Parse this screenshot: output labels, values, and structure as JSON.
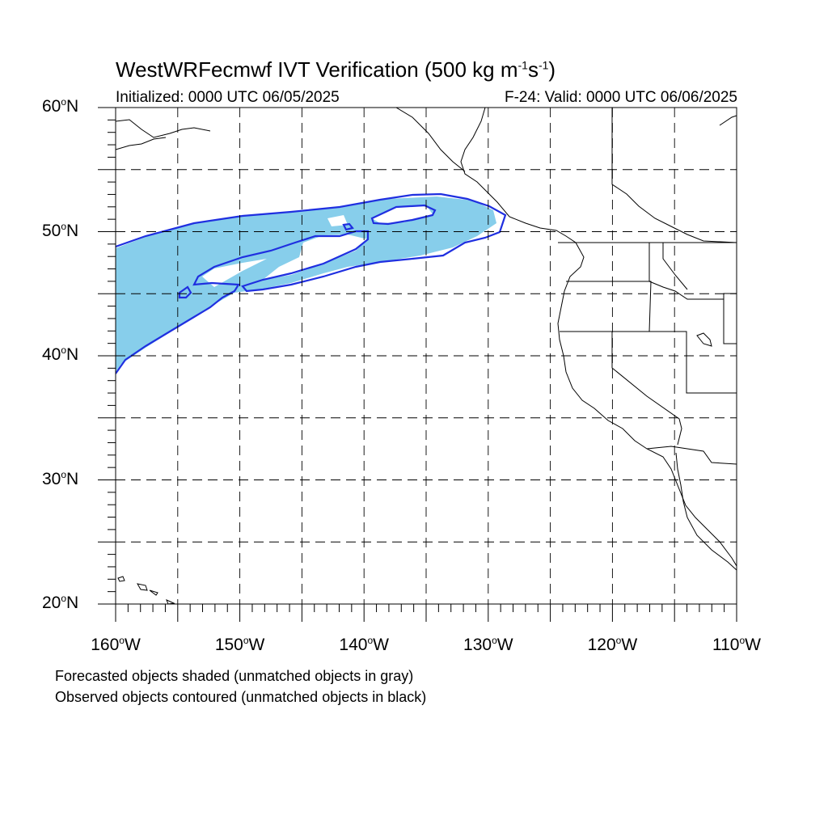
{
  "header": {
    "title_main": "WestWRFecmwf IVT Verification (500 kg m",
    "title_exp1": "-1",
    "title_mid": "s",
    "title_exp2": "-1",
    "title_end": ")",
    "initialized": "Initialized: 0000 UTC 06/05/2025",
    "valid": "F-24: Valid: 0000 UTC 06/06/2025"
  },
  "axes": {
    "lat_ticks": [
      {
        "num": "60",
        "hem": "N"
      },
      {
        "num": "50",
        "hem": "N"
      },
      {
        "num": "40",
        "hem": "N"
      },
      {
        "num": "30",
        "hem": "N"
      },
      {
        "num": "20",
        "hem": "N"
      }
    ],
    "lon_ticks": [
      {
        "num": "160",
        "hem": "W"
      },
      {
        "num": "150",
        "hem": "W"
      },
      {
        "num": "140",
        "hem": "W"
      },
      {
        "num": "130",
        "hem": "W"
      },
      {
        "num": "120",
        "hem": "W"
      },
      {
        "num": "110",
        "hem": "W"
      }
    ],
    "degree_symbol": "o"
  },
  "map": {
    "extent": {
      "lon_min": -160,
      "lon_max": -110,
      "lat_min": 20,
      "lat_max": 60
    },
    "forecast_fill_color": "#87ceeb",
    "observed_contour_color": "#1f2fe0",
    "grid_style": "dashed"
  },
  "footer": {
    "line1": "Forecasted objects shaded (unmatched objects in gray)",
    "line2": "Observed objects contoured (unmatched objects in black)"
  }
}
